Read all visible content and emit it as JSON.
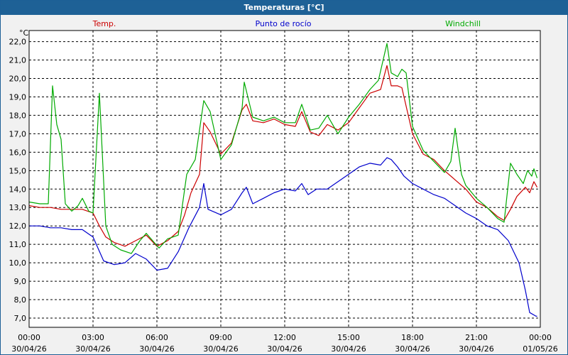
{
  "window": {
    "title": "Temperaturas [°C]"
  },
  "chart_data": {
    "type": "line",
    "title": "Temperaturas [°C]",
    "ylabel": "°C",
    "ylim": [
      6.5,
      22.6
    ],
    "xlim": [
      0,
      24
    ],
    "grid": true,
    "yticks": [
      "7,0",
      "8,0",
      "9,0",
      "10,0",
      "11,0",
      "12,0",
      "13,0",
      "14,0",
      "15,0",
      "16,0",
      "17,0",
      "18,0",
      "19,0",
      "20,0",
      "21,0",
      "22,0"
    ],
    "xticks": [
      {
        "time": "00:00",
        "date": "30/04/26"
      },
      {
        "time": "03:00",
        "date": "30/04/26"
      },
      {
        "time": "06:00",
        "date": "30/04/26"
      },
      {
        "time": "09:00",
        "date": "30/04/26"
      },
      {
        "time": "12:00",
        "date": "30/04/26"
      },
      {
        "time": "15:00",
        "date": "30/04/26"
      },
      {
        "time": "18:00",
        "date": "30/04/26"
      },
      {
        "time": "21:00",
        "date": "30/04/26"
      },
      {
        "time": "00:00",
        "date": "01/05/26"
      }
    ],
    "series": [
      {
        "name": "Temp.",
        "color": "#cc0000",
        "points": [
          [
            0,
            13.1
          ],
          [
            0.5,
            13.0
          ],
          [
            1,
            13.0
          ],
          [
            1.5,
            12.9
          ],
          [
            2,
            12.9
          ],
          [
            2.5,
            12.9
          ],
          [
            3,
            12.7
          ],
          [
            3.3,
            12.0
          ],
          [
            3.6,
            11.4
          ],
          [
            4,
            11.1
          ],
          [
            4.5,
            10.9
          ],
          [
            5,
            11.2
          ],
          [
            5.5,
            11.5
          ],
          [
            6,
            10.9
          ],
          [
            6.5,
            11.2
          ],
          [
            7,
            11.7
          ],
          [
            7.3,
            12.6
          ],
          [
            7.6,
            13.8
          ],
          [
            8.0,
            14.8
          ],
          [
            8.2,
            17.6
          ],
          [
            8.5,
            17.1
          ],
          [
            9,
            15.9
          ],
          [
            9.5,
            16.5
          ],
          [
            10,
            18.3
          ],
          [
            10.2,
            18.6
          ],
          [
            10.5,
            17.7
          ],
          [
            11,
            17.6
          ],
          [
            11.5,
            17.8
          ],
          [
            12,
            17.5
          ],
          [
            12.5,
            17.4
          ],
          [
            12.8,
            18.2
          ],
          [
            13.2,
            17.1
          ],
          [
            13.6,
            16.9
          ],
          [
            14,
            17.5
          ],
          [
            14.5,
            17.2
          ],
          [
            15,
            17.6
          ],
          [
            15.5,
            18.4
          ],
          [
            16,
            19.2
          ],
          [
            16.5,
            19.4
          ],
          [
            16.8,
            20.7
          ],
          [
            17,
            19.6
          ],
          [
            17.3,
            19.6
          ],
          [
            17.5,
            19.5
          ],
          [
            18,
            17.0
          ],
          [
            18.5,
            15.9
          ],
          [
            19,
            15.6
          ],
          [
            19.5,
            15.0
          ],
          [
            20,
            14.5
          ],
          [
            20.5,
            14.0
          ],
          [
            21,
            13.3
          ],
          [
            21.5,
            13.0
          ],
          [
            22,
            12.5
          ],
          [
            22.3,
            12.3
          ],
          [
            22.6,
            12.9
          ],
          [
            22.9,
            13.6
          ],
          [
            23.3,
            14.1
          ],
          [
            23.5,
            13.8
          ],
          [
            23.7,
            14.4
          ],
          [
            23.85,
            14.1
          ]
        ]
      },
      {
        "name": "Punto de rocío",
        "color": "#0000cc",
        "points": [
          [
            0,
            12.0
          ],
          [
            0.5,
            12.0
          ],
          [
            1,
            11.9
          ],
          [
            1.5,
            11.9
          ],
          [
            2,
            11.8
          ],
          [
            2.5,
            11.8
          ],
          [
            3,
            11.4
          ],
          [
            3.5,
            10.1
          ],
          [
            4,
            9.9
          ],
          [
            4.5,
            10.0
          ],
          [
            5,
            10.5
          ],
          [
            5.5,
            10.2
          ],
          [
            6,
            9.6
          ],
          [
            6.5,
            9.7
          ],
          [
            7,
            10.6
          ],
          [
            7.5,
            11.9
          ],
          [
            8,
            13.0
          ],
          [
            8.2,
            14.3
          ],
          [
            8.4,
            12.9
          ],
          [
            9,
            12.6
          ],
          [
            9.5,
            12.9
          ],
          [
            10,
            13.8
          ],
          [
            10.2,
            14.1
          ],
          [
            10.5,
            13.2
          ],
          [
            11,
            13.5
          ],
          [
            11.5,
            13.8
          ],
          [
            12,
            14.0
          ],
          [
            12.5,
            13.9
          ],
          [
            12.8,
            14.3
          ],
          [
            13.1,
            13.7
          ],
          [
            13.5,
            14.0
          ],
          [
            14,
            14.0
          ],
          [
            14.5,
            14.4
          ],
          [
            15,
            14.8
          ],
          [
            15.5,
            15.2
          ],
          [
            16,
            15.4
          ],
          [
            16.5,
            15.3
          ],
          [
            16.8,
            15.7
          ],
          [
            17,
            15.6
          ],
          [
            17.3,
            15.2
          ],
          [
            17.6,
            14.7
          ],
          [
            18,
            14.3
          ],
          [
            18.5,
            14.0
          ],
          [
            19,
            13.7
          ],
          [
            19.5,
            13.5
          ],
          [
            20,
            13.1
          ],
          [
            20.5,
            12.7
          ],
          [
            21,
            12.4
          ],
          [
            21.5,
            12.0
          ],
          [
            22,
            11.8
          ],
          [
            22.5,
            11.2
          ],
          [
            23,
            10.0
          ],
          [
            23.3,
            8.5
          ],
          [
            23.5,
            7.3
          ],
          [
            23.8,
            7.1
          ],
          [
            23.85,
            7.1
          ]
        ]
      },
      {
        "name": "Windchill",
        "color": "#00aa00",
        "points": [
          [
            0,
            13.3
          ],
          [
            0.5,
            13.2
          ],
          [
            0.9,
            13.2
          ],
          [
            1.1,
            19.6
          ],
          [
            1.3,
            17.5
          ],
          [
            1.5,
            16.7
          ],
          [
            1.7,
            13.2
          ],
          [
            2,
            12.8
          ],
          [
            2.3,
            13.1
          ],
          [
            2.5,
            13.5
          ],
          [
            2.8,
            12.8
          ],
          [
            3,
            12.7
          ],
          [
            3.3,
            19.2
          ],
          [
            3.6,
            12.0
          ],
          [
            3.9,
            11.0
          ],
          [
            4.3,
            10.7
          ],
          [
            4.8,
            10.5
          ],
          [
            5.2,
            11.2
          ],
          [
            5.5,
            11.6
          ],
          [
            5.8,
            11.2
          ],
          [
            6.1,
            10.8
          ],
          [
            6.5,
            11.3
          ],
          [
            7,
            11.5
          ],
          [
            7.4,
            14.8
          ],
          [
            7.8,
            15.6
          ],
          [
            8.2,
            18.8
          ],
          [
            8.5,
            18.2
          ],
          [
            9,
            15.6
          ],
          [
            9.5,
            16.4
          ],
          [
            10,
            18.4
          ],
          [
            10.1,
            19.8
          ],
          [
            10.5,
            17.9
          ],
          [
            11,
            17.7
          ],
          [
            11.5,
            17.9
          ],
          [
            12,
            17.6
          ],
          [
            12.5,
            17.6
          ],
          [
            12.8,
            18.6
          ],
          [
            13.2,
            17.2
          ],
          [
            13.6,
            17.3
          ],
          [
            14,
            18.0
          ],
          [
            14.5,
            17.0
          ],
          [
            15,
            17.9
          ],
          [
            15.5,
            18.6
          ],
          [
            16,
            19.4
          ],
          [
            16.4,
            19.9
          ],
          [
            16.8,
            21.9
          ],
          [
            17,
            20.3
          ],
          [
            17.3,
            20.1
          ],
          [
            17.5,
            20.5
          ],
          [
            17.7,
            20.3
          ],
          [
            18,
            17.4
          ],
          [
            18.5,
            16.1
          ],
          [
            19,
            15.5
          ],
          [
            19.5,
            14.9
          ],
          [
            19.8,
            15.5
          ],
          [
            20,
            17.3
          ],
          [
            20.3,
            14.8
          ],
          [
            20.5,
            14.2
          ],
          [
            21,
            13.5
          ],
          [
            21.5,
            13.0
          ],
          [
            22,
            12.4
          ],
          [
            22.3,
            12.2
          ],
          [
            22.6,
            15.4
          ],
          [
            22.9,
            14.8
          ],
          [
            23.2,
            14.3
          ],
          [
            23.4,
            15.0
          ],
          [
            23.6,
            14.7
          ],
          [
            23.7,
            15.1
          ],
          [
            23.85,
            14.6
          ]
        ]
      }
    ]
  }
}
